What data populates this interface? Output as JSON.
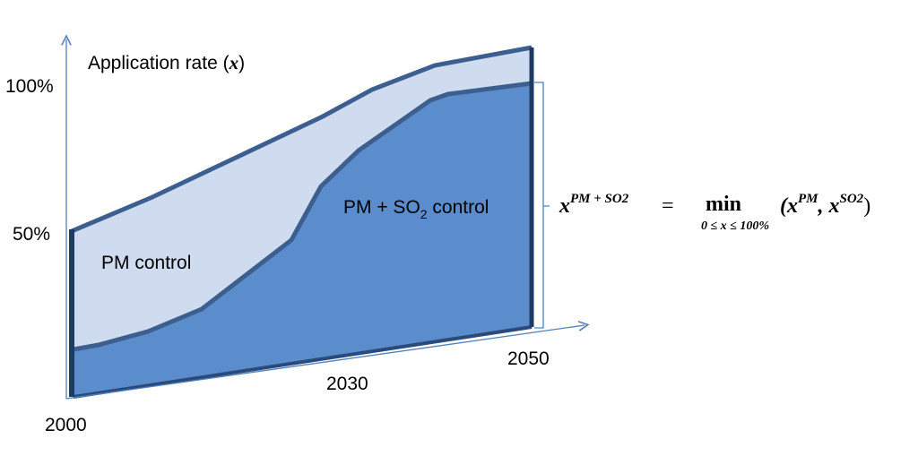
{
  "y_axis": {
    "label_text": "Application rate (",
    "label_var": "x",
    "label_close": ")",
    "ticks": [
      "100%",
      "50%"
    ]
  },
  "x_axis": {
    "ticks": [
      "2000",
      "2030",
      "2050"
    ]
  },
  "regions": {
    "pm": "PM control",
    "pm_so2": {
      "prefix": "PM + SO",
      "subscript": "2",
      "suffix": " control"
    }
  },
  "formula": {
    "lhs": "x",
    "lhs_sup": "PM + SO2",
    "equals": "=",
    "op": "min",
    "op_sub": "0 ≤ x ≤ 100%",
    "open": "(x",
    "arg1_sup": "PM",
    "sep": ", x",
    "arg2_sup": "SO2",
    "close": ")"
  }
}
